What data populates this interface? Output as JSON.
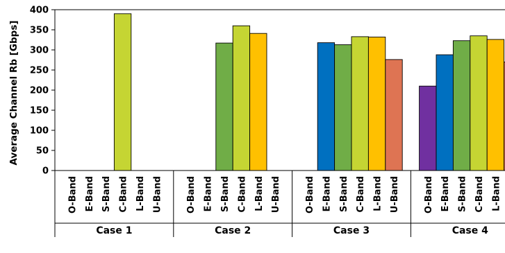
{
  "chart_data": {
    "type": "bar",
    "title": "",
    "ylabel": "Average Channel Rb [Gbps]",
    "ylim": [
      0,
      400
    ],
    "yticks": [
      0,
      50,
      100,
      150,
      200,
      250,
      300,
      350,
      400
    ],
    "grid": false,
    "bands": [
      "O-Band",
      "E-Band",
      "S-Band",
      "C-Band",
      "L-Band",
      "U-Band"
    ],
    "band_colors": [
      "#7030a0",
      "#0070c0",
      "#70ad47",
      "#c5d533",
      "#ffc000",
      "#de7453"
    ],
    "groups": [
      {
        "name": "Case 1",
        "values": [
          null,
          null,
          null,
          390,
          null,
          null
        ]
      },
      {
        "name": "Case 2",
        "values": [
          null,
          null,
          317,
          360,
          341,
          null
        ]
      },
      {
        "name": "Case 3",
        "values": [
          null,
          318,
          313,
          333,
          332,
          276
        ]
      },
      {
        "name": "Case 4",
        "values": [
          210,
          288,
          323,
          335,
          326,
          270
        ]
      }
    ]
  }
}
